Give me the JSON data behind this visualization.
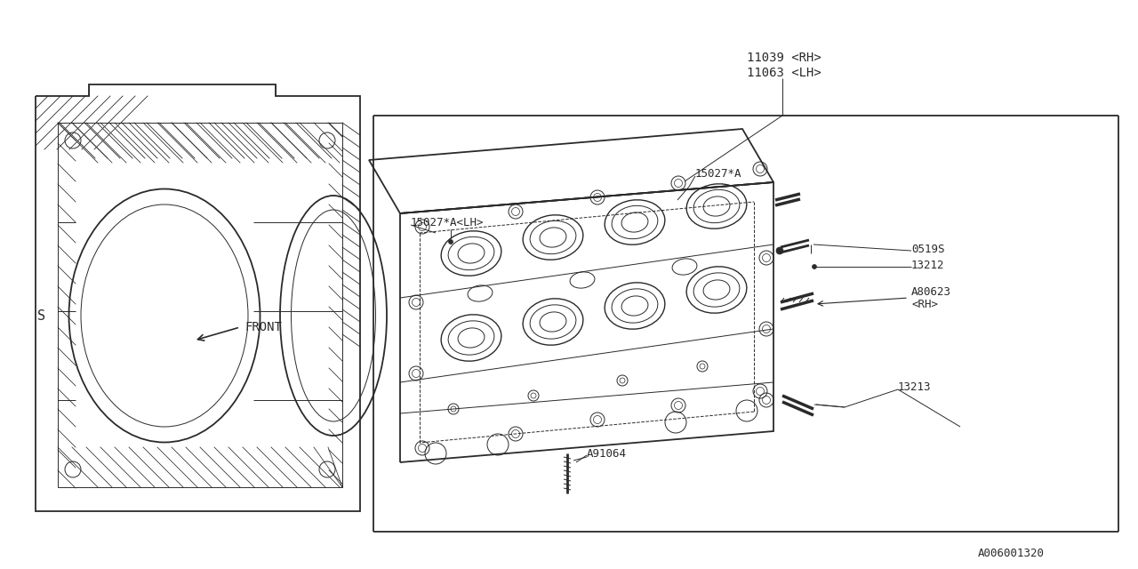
{
  "bg_color": "#ffffff",
  "line_color": "#2a2a2a",
  "text_color": "#2a2a2a",
  "figsize": [
    12.8,
    6.4
  ],
  "dpi": 100,
  "labels": {
    "11039_RH": "11039 <RH>",
    "11063_LH": "11063 <LH>",
    "15027A_LH": "15027*A<LH>",
    "15027A": "15027*A",
    "0519S": "0519S",
    "13212": "13212",
    "A80623": "A80623",
    "A80623_rh": "<RH>",
    "13213": "13213",
    "A91064": "A91064",
    "FRONT": "FRONT",
    "doc_num": "A006001320"
  }
}
